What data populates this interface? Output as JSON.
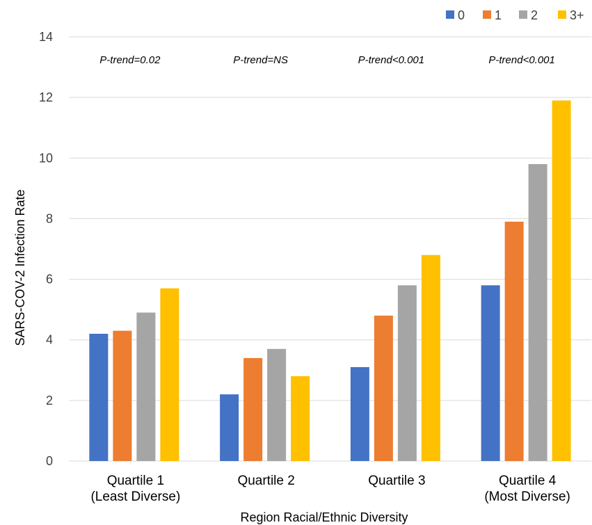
{
  "chart_data": {
    "type": "bar",
    "title": "",
    "xlabel": "Region Racial/Ethnic Diversity",
    "ylabel": "SARS-COV-2 Infection Rate",
    "ylim": [
      0,
      14
    ],
    "yticks": [
      "0",
      "2",
      "4",
      "6",
      "8",
      "10",
      "12",
      "14"
    ],
    "grid": true,
    "legend_position": "top-right",
    "categories": [
      [
        "Quartile 1",
        "(Least Diverse)"
      ],
      [
        "Quartile 2"
      ],
      [
        "Quartile 3"
      ],
      [
        "Quartile 4",
        "(Most Diverse)"
      ]
    ],
    "annotations": [
      "P-trend=0.02",
      "P-trend=NS",
      "P-trend<0.001",
      "P-trend<0.001"
    ],
    "series": [
      {
        "name": "0",
        "color": "#4472c4",
        "values": [
          4.2,
          2.2,
          3.1,
          5.8
        ]
      },
      {
        "name": "1",
        "color": "#ed7d31",
        "values": [
          4.3,
          3.4,
          4.8,
          7.9
        ]
      },
      {
        "name": "2",
        "color": "#a5a5a5",
        "values": [
          4.9,
          3.7,
          5.8,
          9.8
        ]
      },
      {
        "name": "3+",
        "color": "#ffc000",
        "values": [
          5.7,
          2.8,
          6.8,
          11.9
        ]
      }
    ]
  }
}
